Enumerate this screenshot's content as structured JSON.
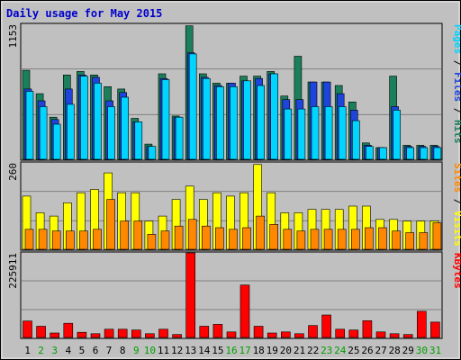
{
  "chart_data": {
    "type": "bar",
    "title": "Daily usage for May 2015",
    "categories": [
      "1",
      "2",
      "3",
      "4",
      "5",
      "6",
      "7",
      "8",
      "9",
      "10",
      "11",
      "12",
      "13",
      "14",
      "15",
      "16",
      "17",
      "18",
      "19",
      "20",
      "21",
      "22",
      "23",
      "24",
      "25",
      "26",
      "27",
      "28",
      "29",
      "30",
      "31"
    ],
    "weekend_days": [
      "2",
      "3",
      "9",
      "10",
      "16",
      "17",
      "23",
      "24",
      "30",
      "31"
    ],
    "panels": [
      {
        "id": "top",
        "max_label": "1153",
        "ylim": [
          0,
          1153
        ],
        "axis_label": [
          "Pages",
          "Files",
          "Hits"
        ],
        "series": [
          {
            "name": "Hits",
            "color": "#1a7f5a",
            "values": [
              760,
              560,
              360,
              720,
              750,
              720,
              620,
              600,
              350,
              130,
              730,
              370,
              1140,
              730,
              650,
              650,
              710,
              710,
              750,
              540,
              880,
              660,
              660,
              630,
              490,
              140,
              100,
              710,
              120,
              120,
              120
            ]
          },
          {
            "name": "Files",
            "color": "#1e44dc",
            "values": [
              600,
              500,
              340,
              600,
              720,
              700,
              500,
              570,
              320,
              110,
              690,
              360,
              910,
              700,
              630,
              650,
              670,
              690,
              730,
              510,
              510,
              660,
              660,
              560,
              420,
              120,
              100,
              450,
              110,
              110,
              110
            ]
          },
          {
            "name": "Pages",
            "color": "#00d4ff",
            "values": [
              580,
              450,
              300,
              470,
              710,
              650,
              450,
              530,
              320,
              110,
              680,
              360,
              900,
              690,
              620,
              620,
              670,
              630,
              730,
              430,
              430,
              450,
              450,
              450,
              330,
              110,
              100,
              420,
              100,
              100,
              100
            ]
          }
        ]
      },
      {
        "id": "middle",
        "max_label": "260",
        "ylim": [
          0,
          260
        ],
        "axis_label": [
          "Sites",
          "Visits"
        ],
        "series": [
          {
            "name": "Visits",
            "color": "#ffff00",
            "values": [
              160,
              110,
              100,
              140,
              170,
              180,
              230,
              170,
              170,
              85,
              100,
              150,
              190,
              150,
              170,
              160,
              170,
              255,
              170,
              110,
              110,
              120,
              120,
              120,
              130,
              130,
              90,
              90,
              85,
              85,
              85
            ]
          },
          {
            "name": "Sites",
            "color": "#ff8800",
            "values": [
              60,
              60,
              55,
              55,
              55,
              60,
              150,
              85,
              85,
              45,
              55,
              70,
              90,
              70,
              65,
              60,
              65,
              100,
              75,
              60,
              55,
              60,
              60,
              60,
              60,
              65,
              65,
              55,
              50,
              50,
              80
            ]
          }
        ]
      },
      {
        "id": "bottom",
        "max_label": "225911",
        "ylim": [
          0,
          225911
        ],
        "axis_label": [
          "KBytes"
        ],
        "series": [
          {
            "name": "KBytes",
            "color": "#ff0000",
            "values": [
              44000,
              30000,
              12000,
              38000,
              14000,
              10000,
              22000,
              22000,
              20000,
              10000,
              22000,
              8000,
              225911,
              30000,
              35000,
              15000,
              140000,
              30000,
              12000,
              15000,
              10000,
              32000,
              60000,
              22000,
              20000,
              45000,
              15000,
              10000,
              8000,
              70000,
              41000
            ]
          }
        ]
      }
    ]
  }
}
